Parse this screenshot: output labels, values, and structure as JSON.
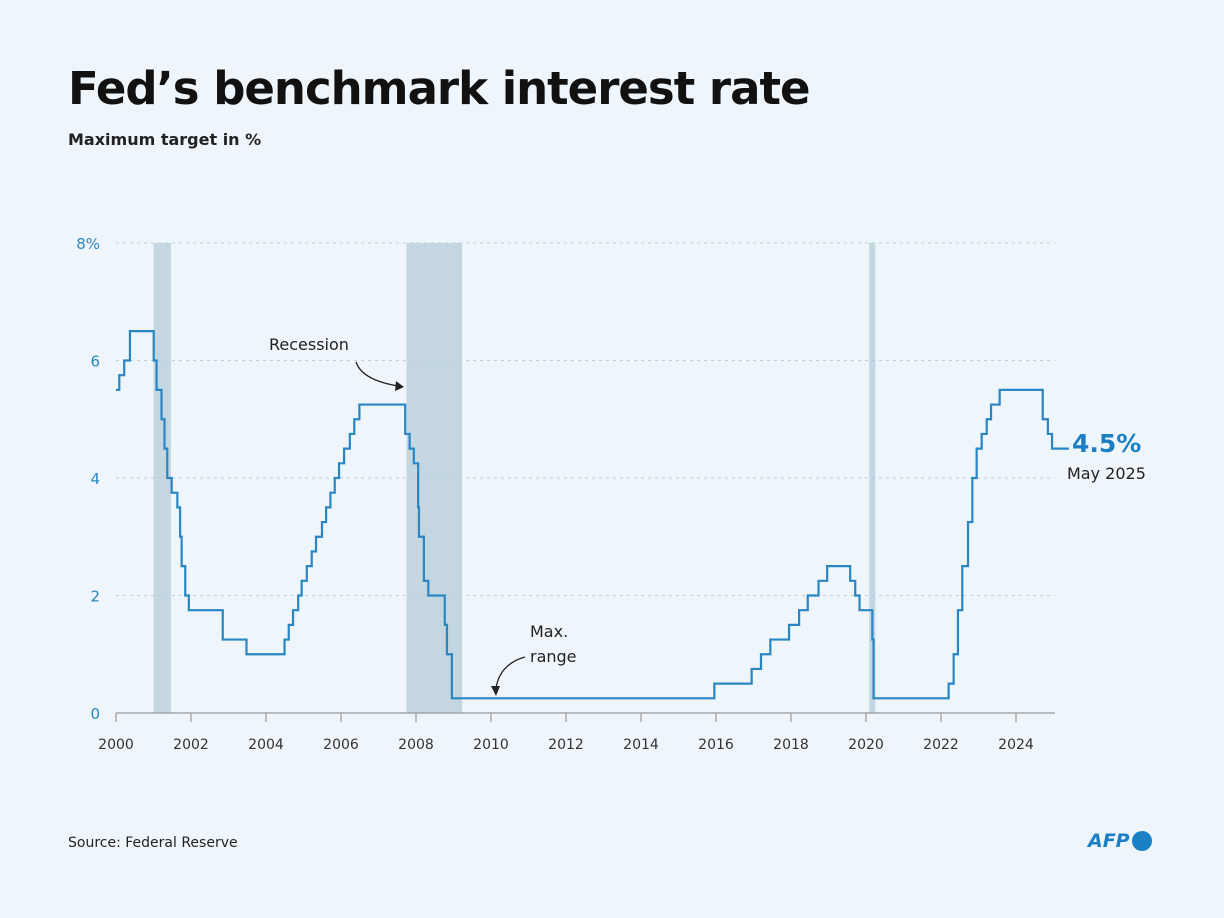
{
  "title": "Fed’s benchmark interest rate",
  "subtitle": "Maximum target in %",
  "source": "Source: Federal Reserve",
  "logo_text": "AFP",
  "colors": {
    "line": "#2a86c3",
    "recession": "#c4d6df",
    "background": "#eef5fb",
    "accent": "#1b7fc4"
  },
  "chart_data": {
    "type": "line",
    "step": true,
    "title": "Fed’s benchmark interest rate",
    "subtitle": "Maximum target in %",
    "xlim": [
      "2000-01-01",
      "2025-05-31"
    ],
    "ylim": [
      0,
      8
    ],
    "grid": true,
    "x_ticks": [
      "2000",
      "2002",
      "2004",
      "2006",
      "2008",
      "2010",
      "2012",
      "2014",
      "2016",
      "2018",
      "2020",
      "2022",
      "2024"
    ],
    "y_ticks": [
      {
        "value": 0,
        "label": "0"
      },
      {
        "value": 2,
        "label": "2"
      },
      {
        "value": 4,
        "label": "4"
      },
      {
        "value": 6,
        "label": "6"
      },
      {
        "value": 8,
        "label": "8%"
      }
    ],
    "recessions": [
      [
        "2001-01-01",
        "2001-06-20"
      ],
      [
        "2007-10-01",
        "2009-03-25"
      ],
      [
        "2020-02-01",
        "2020-04-01"
      ]
    ],
    "series": [
      {
        "points": [
          [
            "2000-01-01",
            5.5
          ],
          [
            "2000-02-02",
            5.75
          ],
          [
            "2000-03-21",
            6.0
          ],
          [
            "2000-05-16",
            6.5
          ],
          [
            "2001-01-03",
            6.0
          ],
          [
            "2001-01-31",
            5.5
          ],
          [
            "2001-03-20",
            5.0
          ],
          [
            "2001-04-18",
            4.5
          ],
          [
            "2001-05-15",
            4.0
          ],
          [
            "2001-06-27",
            3.75
          ],
          [
            "2001-08-21",
            3.5
          ],
          [
            "2001-09-17",
            3.0
          ],
          [
            "2001-10-02",
            2.5
          ],
          [
            "2001-11-06",
            2.0
          ],
          [
            "2001-12-11",
            1.75
          ],
          [
            "2002-11-06",
            1.25
          ],
          [
            "2003-06-25",
            1.0
          ],
          [
            "2004-06-30",
            1.25
          ],
          [
            "2004-08-10",
            1.5
          ],
          [
            "2004-09-21",
            1.75
          ],
          [
            "2004-11-10",
            2.0
          ],
          [
            "2004-12-14",
            2.25
          ],
          [
            "2005-02-02",
            2.5
          ],
          [
            "2005-03-22",
            2.75
          ],
          [
            "2005-05-03",
            3.0
          ],
          [
            "2005-06-30",
            3.25
          ],
          [
            "2005-08-09",
            3.5
          ],
          [
            "2005-09-20",
            3.75
          ],
          [
            "2005-11-01",
            4.0
          ],
          [
            "2005-12-13",
            4.25
          ],
          [
            "2006-01-31",
            4.5
          ],
          [
            "2006-03-28",
            4.75
          ],
          [
            "2006-05-10",
            5.0
          ],
          [
            "2006-06-29",
            5.25
          ],
          [
            "2007-09-18",
            4.75
          ],
          [
            "2007-10-31",
            4.5
          ],
          [
            "2007-12-11",
            4.25
          ],
          [
            "2008-01-22",
            3.5
          ],
          [
            "2008-01-30",
            3.0
          ],
          [
            "2008-03-18",
            2.25
          ],
          [
            "2008-04-30",
            2.0
          ],
          [
            "2008-10-08",
            1.5
          ],
          [
            "2008-10-29",
            1.0
          ],
          [
            "2008-12-16",
            0.25
          ],
          [
            "2015-12-16",
            0.5
          ],
          [
            "2016-12-14",
            0.75
          ],
          [
            "2017-03-15",
            1.0
          ],
          [
            "2017-06-14",
            1.25
          ],
          [
            "2017-12-13",
            1.5
          ],
          [
            "2018-03-21",
            1.75
          ],
          [
            "2018-06-13",
            2.0
          ],
          [
            "2018-09-26",
            2.25
          ],
          [
            "2018-12-19",
            2.5
          ],
          [
            "2019-07-31",
            2.25
          ],
          [
            "2019-09-18",
            2.0
          ],
          [
            "2019-10-30",
            1.75
          ],
          [
            "2020-03-03",
            1.25
          ],
          [
            "2020-03-15",
            0.25
          ],
          [
            "2022-03-16",
            0.5
          ],
          [
            "2022-05-04",
            1.0
          ],
          [
            "2022-06-15",
            1.75
          ],
          [
            "2022-07-27",
            2.5
          ],
          [
            "2022-09-21",
            3.25
          ],
          [
            "2022-11-02",
            4.0
          ],
          [
            "2022-12-14",
            4.5
          ],
          [
            "2023-02-01",
            4.75
          ],
          [
            "2023-03-22",
            5.0
          ],
          [
            "2023-05-03",
            5.25
          ],
          [
            "2023-07-26",
            5.5
          ],
          [
            "2024-09-18",
            5.0
          ],
          [
            "2024-11-07",
            4.75
          ],
          [
            "2024-12-18",
            4.5
          ],
          [
            "2025-05-31",
            4.5
          ]
        ]
      }
    ],
    "annotations": {
      "recession": "Recession",
      "max_range_1": "Max.",
      "max_range_2": "range",
      "end_value": "4.5%",
      "end_date": "May 2025"
    }
  }
}
